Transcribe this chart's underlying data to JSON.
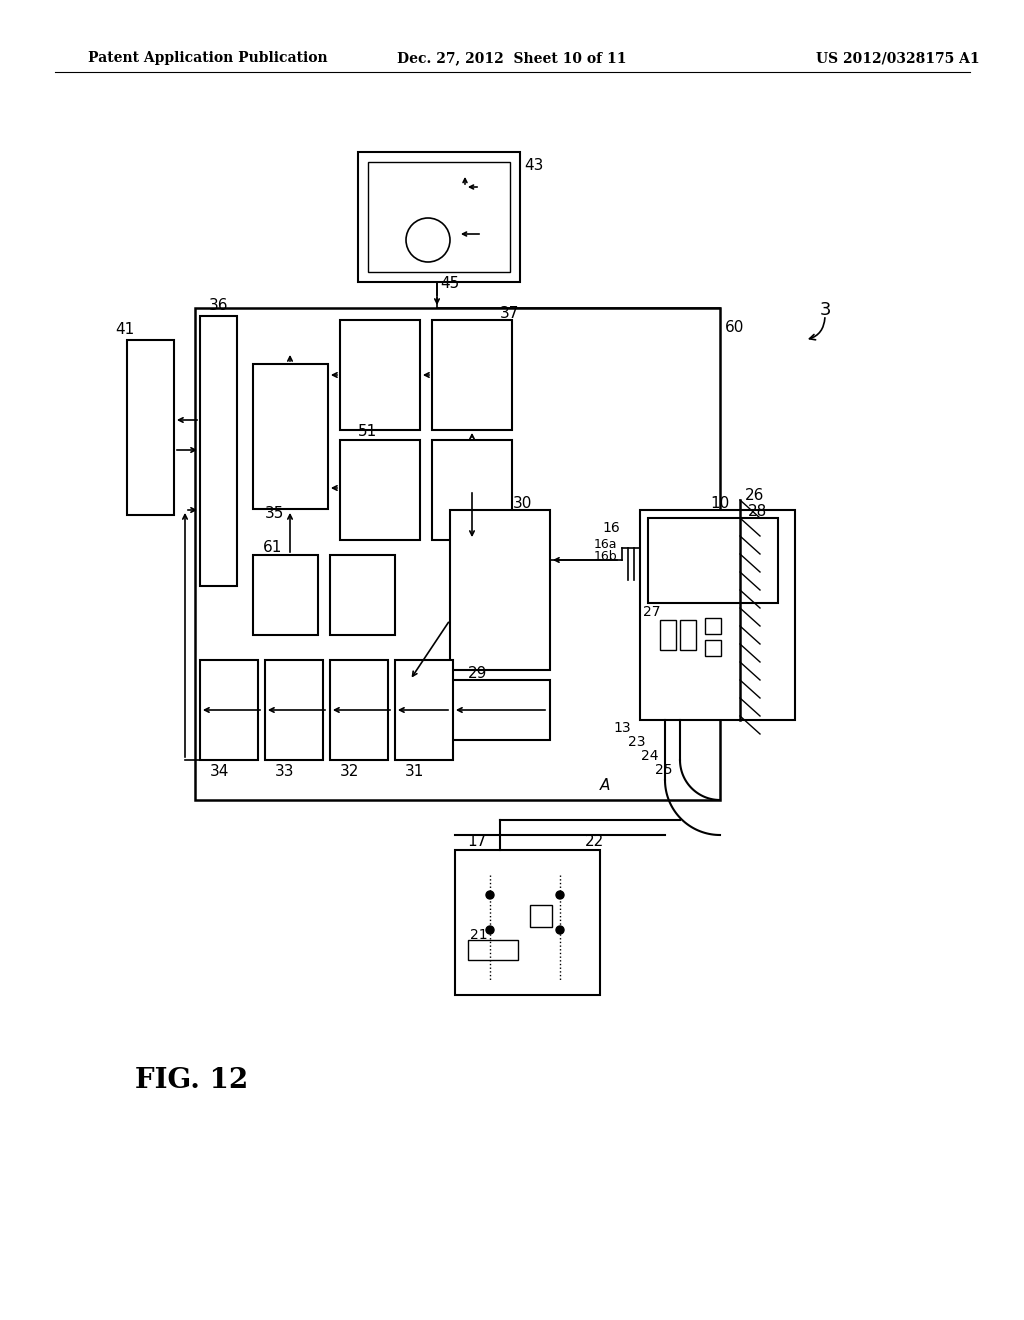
{
  "bg_color": "#ffffff",
  "title_left": "Patent Application Publication",
  "title_mid": "Dec. 27, 2012  Sheet 10 of 11",
  "title_right": "US 2012/0328175 A1",
  "fig_label": "FIG. 12"
}
